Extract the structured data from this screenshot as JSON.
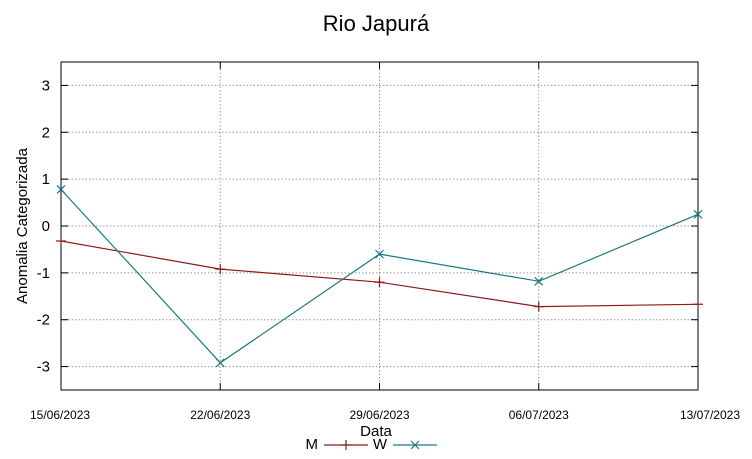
{
  "chart_data": {
    "type": "line",
    "title": "Rio Japurá",
    "xlabel": "Data",
    "ylabel": "Anomalia Categorizada",
    "x": [
      "15/06/2023",
      "22/06/2023",
      "29/06/2023",
      "06/07/2023",
      "13/07/2023"
    ],
    "xticks": [
      "15/06/2023",
      "22/06/2023",
      "29/06/2023",
      "06/07/2023",
      "13/07/2023"
    ],
    "ylim": [
      -3.5,
      3.5
    ],
    "yticks": [
      3,
      2,
      1,
      0,
      -1,
      -2,
      -3
    ],
    "grid": true,
    "legend_position": "bottom-center",
    "series": [
      {
        "name": "M",
        "color": "#8b1a1a",
        "marker": "+",
        "values": [
          -0.32,
          -0.92,
          -1.2,
          -1.72,
          -1.67
        ]
      },
      {
        "name": "W",
        "color": "#1b7a80",
        "marker": "x",
        "values": [
          0.78,
          -2.92,
          -0.6,
          -1.18,
          0.25
        ]
      }
    ]
  }
}
